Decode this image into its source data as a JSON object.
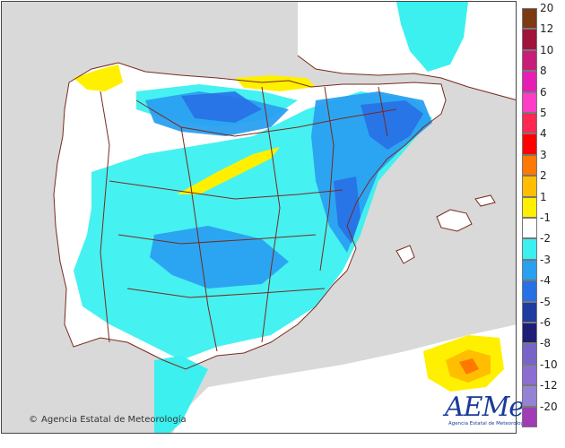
{
  "map": {
    "copyright": "Agencia Estatal de Meteorología",
    "logo_text": "AEMet",
    "logo_subtext": "Agencia Estatal de Meteorología"
  },
  "legend": {
    "items": [
      {
        "label": "20",
        "color": "#7b3a12"
      },
      {
        "label": "12",
        "color": "#a0143c"
      },
      {
        "label": "10",
        "color": "#c81e78"
      },
      {
        "label": "8",
        "color": "#e61eb4"
      },
      {
        "label": "6",
        "color": "#ff3cc8"
      },
      {
        "label": "5",
        "color": "#ff2850"
      },
      {
        "label": "4",
        "color": "#ff0000"
      },
      {
        "label": "3",
        "color": "#ff7800"
      },
      {
        "label": "2",
        "color": "#ffbe00"
      },
      {
        "label": "1",
        "color": "#fff000"
      },
      {
        "label": "-1",
        "color": "#ffffff"
      },
      {
        "label": "-2",
        "color": "#3cf0f0"
      },
      {
        "label": "-3",
        "color": "#2aa0f0"
      },
      {
        "label": "-4",
        "color": "#2870e6"
      },
      {
        "label": "-5",
        "color": "#1e3ca0"
      },
      {
        "label": "-6",
        "color": "#1e1e78"
      },
      {
        "label": "-8",
        "color": "#7864c8"
      },
      {
        "label": "-10",
        "color": "#8c6ed2"
      },
      {
        "label": "-12",
        "color": "#9682d2"
      },
      {
        "label": "-20",
        "color": "#a03cb4"
      }
    ]
  },
  "colors": {
    "sea": "#d9d9d9",
    "land_neutral": "#ffffff",
    "border_line": "#7a2a1e"
  }
}
